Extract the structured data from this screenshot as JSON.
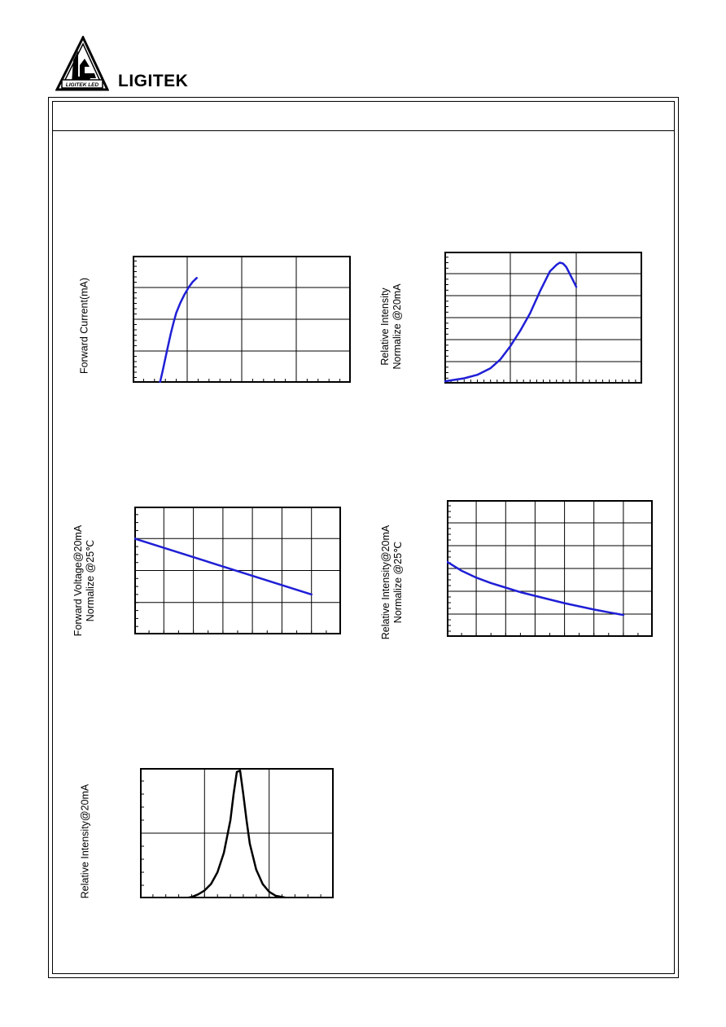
{
  "header": {
    "brand_name": "LIGITEK",
    "logo_caption": "LIGITEK LED"
  },
  "chart_data": [
    {
      "type": "line",
      "ylabel": [
        "Forward Current(mA)"
      ],
      "xlim": [
        0,
        8
      ],
      "ylog": true,
      "ylim": [
        0.1,
        1000
      ],
      "grid": true,
      "color": "#1f1fd6",
      "series": [
        {
          "x": [
            1.0,
            1.1,
            1.2,
            1.3,
            1.4,
            1.5,
            1.6,
            1.75,
            1.9,
            2.05,
            2.2,
            2.35
          ],
          "y": [
            0.1,
            0.24,
            0.6,
            1.5,
            3.6,
            8,
            16,
            33,
            60,
            100,
            150,
            200
          ]
        }
      ]
    },
    {
      "type": "line",
      "ylabel": [
        "Relative Intensity",
        "Normalize @20mA"
      ],
      "xlim": [
        0,
        3
      ],
      "ylim": [
        0,
        3
      ],
      "grid": true,
      "color": "#1f1fd6",
      "series": [
        {
          "x": [
            0.0,
            0.3,
            0.5,
            0.7,
            0.85,
            1.0,
            1.15,
            1.3,
            1.45,
            1.6,
            1.7,
            1.75,
            1.8,
            1.85,
            1.9,
            1.95,
            2.0
          ],
          "y": [
            0.05,
            0.12,
            0.2,
            0.35,
            0.55,
            0.85,
            1.2,
            1.6,
            2.1,
            2.55,
            2.7,
            2.75,
            2.73,
            2.65,
            2.5,
            2.35,
            2.2
          ]
        }
      ]
    },
    {
      "type": "line",
      "ylabel": [
        "Forward Voltage@20mA",
        "Normalize @25℃"
      ],
      "xlim": [
        -40,
        100
      ],
      "ylim": [
        0.8,
        1.2
      ],
      "grid": true,
      "color": "#1f1fd6",
      "series": [
        {
          "x": [
            -40,
            80
          ],
          "y": [
            1.1,
            0.925
          ]
        }
      ]
    },
    {
      "type": "line",
      "ylabel": [
        "Relative Intensity@20mA",
        "Normalize @25℃"
      ],
      "xlim": [
        -40,
        100
      ],
      "ylim": [
        0,
        3
      ],
      "grid": true,
      "color": "#1f1fd6",
      "series": [
        {
          "x": [
            -40,
            -30,
            -20,
            -10,
            0,
            10,
            20,
            30,
            40,
            50,
            60,
            70,
            80
          ],
          "y": [
            1.65,
            1.45,
            1.3,
            1.18,
            1.08,
            0.98,
            0.9,
            0.82,
            0.74,
            0.67,
            0.6,
            0.54,
            0.48
          ]
        }
      ]
    },
    {
      "type": "line",
      "ylabel": [
        "Relative Intensity@20mA"
      ],
      "xlim": [
        0,
        3
      ],
      "ylim": [
        0,
        1
      ],
      "grid": true,
      "color": "#000000",
      "series": [
        {
          "x": [
            0.7,
            0.8,
            0.9,
            1.0,
            1.1,
            1.2,
            1.3,
            1.4,
            1.45,
            1.5,
            1.55,
            1.6,
            1.65,
            1.7,
            1.8,
            1.9,
            2.0,
            2.1,
            2.2,
            2.3
          ],
          "y": [
            0.0,
            0.01,
            0.03,
            0.06,
            0.11,
            0.2,
            0.35,
            0.6,
            0.8,
            0.97,
            0.98,
            0.8,
            0.6,
            0.42,
            0.22,
            0.11,
            0.05,
            0.02,
            0.01,
            0.0
          ]
        }
      ]
    }
  ]
}
